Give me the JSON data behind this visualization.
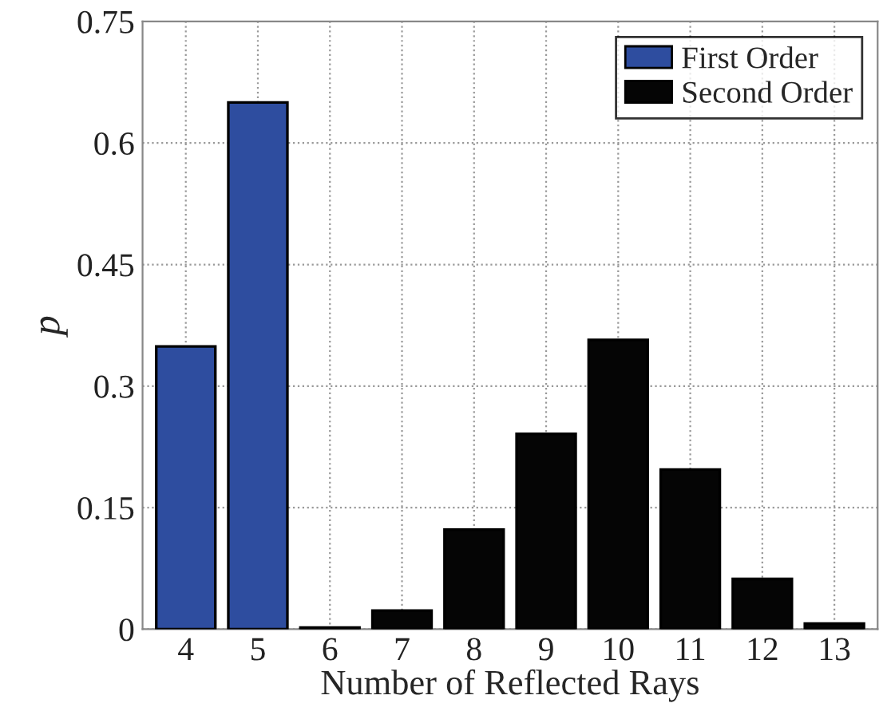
{
  "chart_data": {
    "type": "bar",
    "xlabel": "Number of Reflected Rays",
    "ylabel": "p",
    "categories": [
      "4",
      "5",
      "6",
      "7",
      "8",
      "9",
      "10",
      "11",
      "12",
      "13"
    ],
    "series": [
      {
        "name": "First Order",
        "color": "#2e4d9f",
        "values": [
          0.349,
          0.65,
          null,
          null,
          null,
          null,
          null,
          null,
          null,
          null
        ]
      },
      {
        "name": "Second Order",
        "color": "#050505",
        "values": [
          null,
          null,
          0.002,
          0.023,
          0.123,
          0.241,
          0.357,
          0.197,
          0.062,
          0.007
        ]
      }
    ],
    "ylim": [
      0,
      0.75
    ],
    "yticks": [
      0,
      0.15,
      0.3,
      0.45,
      0.6,
      0.75
    ],
    "grid": true,
    "line_style": "dotted",
    "legend": "top right"
  }
}
